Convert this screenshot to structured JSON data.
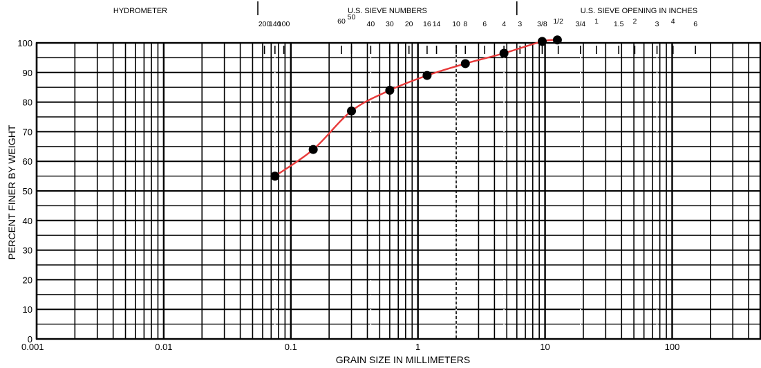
{
  "chart_data": {
    "type": "scatter",
    "title": "",
    "xlabel": "GRAIN SIZE IN MILLIMETERS",
    "ylabel": "PERCENT FINER BY WEIGHT",
    "x_scale": "log",
    "xlim": [
      0.001,
      500
    ],
    "ylim": [
      0,
      100
    ],
    "x_ticks": [
      {
        "value": 0.001,
        "label": "0.001"
      },
      {
        "value": 0.01,
        "label": "0.01"
      },
      {
        "value": 0.1,
        "label": "0.1"
      },
      {
        "value": 1,
        "label": "1"
      },
      {
        "value": 10,
        "label": "10"
      },
      {
        "value": 100,
        "label": "100"
      }
    ],
    "y_ticks": [
      0,
      10,
      20,
      30,
      40,
      50,
      60,
      70,
      80,
      90,
      100
    ],
    "grid": true,
    "curve_color": "#e83a3a",
    "series": [
      {
        "x": [
          0.075,
          0.15,
          0.3,
          0.6,
          1.18,
          2.36,
          4.75,
          9.5,
          12.5
        ],
        "y": [
          55,
          64,
          77,
          84,
          89,
          93,
          96.5,
          100.5,
          101.5
        ]
      }
    ],
    "top_scale": {
      "sections": [
        {
          "name": "HYDROMETER",
          "from": 0.001,
          "to": 0.055
        },
        {
          "name": "U.S. SIEVE NUMBERS",
          "from": 0.055,
          "to": 6
        },
        {
          "name": "U.S. SIEVE OPENING IN INCHES",
          "from": 6,
          "to": 500
        }
      ],
      "dividers": [
        0.055,
        6
      ],
      "sieve_labels": [
        {
          "label": "200",
          "value": 0.062
        },
        {
          "label": "140",
          "value": 0.075
        },
        {
          "label": "100",
          "value": 0.088
        },
        {
          "label": "60",
          "value": 0.25
        },
        {
          "label": "50",
          "value": 0.3
        },
        {
          "label": "40",
          "value": 0.425
        },
        {
          "label": "30",
          "value": 0.6
        },
        {
          "label": "20",
          "value": 0.85
        },
        {
          "label": "16",
          "value": 1.18
        },
        {
          "label": "14",
          "value": 1.4
        },
        {
          "label": "10",
          "value": 2.0
        },
        {
          "label": "8",
          "value": 2.36
        },
        {
          "label": "6",
          "value": 3.35
        },
        {
          "label": "4",
          "value": 4.75
        },
        {
          "label": "3",
          "value": 6.35
        }
      ],
      "inch_labels": [
        {
          "label": "3/8",
          "value": 9.5
        },
        {
          "label": "1/2",
          "value": 12.7
        },
        {
          "label": "3/4",
          "value": 19
        },
        {
          "label": "1",
          "value": 25.4
        },
        {
          "label": "1.5",
          "value": 38
        },
        {
          "label": "2",
          "value": 50.8
        },
        {
          "label": "3",
          "value": 76
        },
        {
          "label": "4",
          "value": 101.6
        },
        {
          "label": "6",
          "value": 152.4
        }
      ],
      "dotted_marks": [
        0.075,
        0.425,
        2.0,
        4.75,
        19,
        76
      ]
    }
  }
}
